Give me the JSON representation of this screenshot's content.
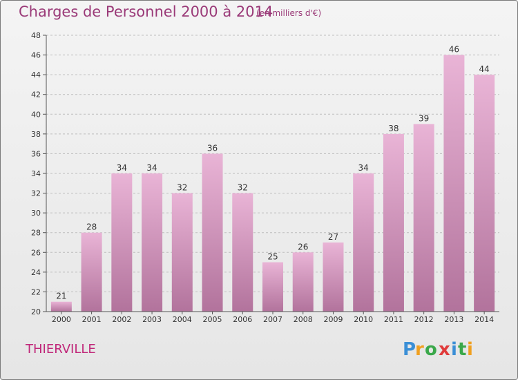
{
  "header": {
    "title": "Charges de Personnel 2000 à 2014",
    "subtitle": "(en milliers d'€)"
  },
  "footer": {
    "commune": "THIERVILLE",
    "brand": "Proxiti"
  },
  "colors": {
    "title": "#9a3a78",
    "commune": "#c0287a",
    "bar_top": "#e9b4d6",
    "bar_bottom": "#b2739c",
    "axis": "#555555"
  },
  "chart_data": {
    "type": "bar",
    "title": "Charges de Personnel 2000 à 2014",
    "subtitle": "(en milliers d'€)",
    "categories": [
      "2000",
      "2001",
      "2002",
      "2003",
      "2004",
      "2005",
      "2006",
      "2007",
      "2008",
      "2009",
      "2010",
      "2011",
      "2012",
      "2013",
      "2014"
    ],
    "values": [
      21,
      28,
      34,
      34,
      32,
      36,
      32,
      25,
      26,
      27,
      34,
      38,
      39,
      46,
      44
    ],
    "ylim": [
      20,
      48
    ],
    "yticks": [
      20,
      22,
      24,
      26,
      28,
      30,
      32,
      34,
      36,
      38,
      40,
      42,
      44,
      46,
      48
    ],
    "grid": true,
    "data_labels": true
  }
}
